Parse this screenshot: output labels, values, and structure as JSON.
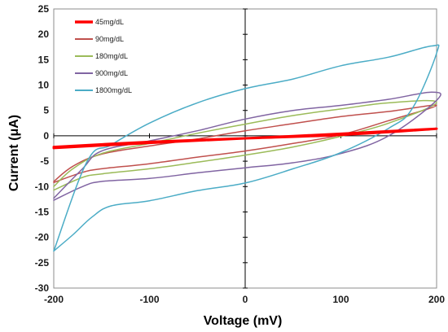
{
  "chart_data": {
    "type": "line",
    "xlabel": "Voltage (mV)",
    "ylabel": "Current (μA)",
    "xlim": [
      -200,
      200
    ],
    "ylim": [
      -30,
      25
    ],
    "xticks": [
      -200,
      -100,
      0,
      100,
      200
    ],
    "yticks": [
      -30,
      -25,
      -20,
      -15,
      -10,
      -5,
      0,
      5,
      10,
      15,
      20,
      25
    ],
    "grid": false,
    "legend_position": "top-left",
    "series": [
      {
        "name": "45mg/dL",
        "color": "#ff0000",
        "stroke_width": 3,
        "x": [
          -200,
          -100,
          0,
          100,
          200,
          100,
          0,
          -100,
          -200
        ],
        "y": [
          -2.4,
          -1.4,
          -0.5,
          0.4,
          1.4,
          0.2,
          -0.5,
          -1.2,
          -2.2
        ]
      },
      {
        "name": "90mg/dL",
        "color": "#c0504d",
        "stroke_width": 1.5,
        "x": [
          -200,
          -170,
          -150,
          -100,
          -50,
          0,
          50,
          100,
          150,
          200,
          150,
          100,
          50,
          0,
          -50,
          -100,
          -150,
          -180,
          -200
        ],
        "y": [
          -9.2,
          -7.2,
          -6.5,
          -5.5,
          -4.2,
          -3.0,
          -1.5,
          0.2,
          3.0,
          6.0,
          4.8,
          3.8,
          2.4,
          1.0,
          -0.6,
          -2.0,
          -3.6,
          -6.0,
          -9.0
        ]
      },
      {
        "name": "180mg/dL",
        "color": "#9bbb59",
        "stroke_width": 1.5,
        "x": [
          -200,
          -170,
          -150,
          -100,
          -50,
          0,
          50,
          100,
          150,
          200,
          150,
          100,
          50,
          0,
          -50,
          -100,
          -150,
          -180,
          -200
        ],
        "y": [
          -10.7,
          -8.2,
          -7.5,
          -6.5,
          -5.2,
          -3.8,
          -2.2,
          -0.1,
          2.5,
          6.6,
          6.5,
          5.3,
          4.0,
          2.3,
          0.5,
          -1.5,
          -3.5,
          -6.5,
          -10.0
        ]
      },
      {
        "name": "900mg/dL",
        "color": "#8064a2",
        "stroke_width": 1.5,
        "x": [
          -200,
          -170,
          -150,
          -100,
          -50,
          0,
          50,
          100,
          150,
          200,
          195,
          150,
          100,
          50,
          0,
          -50,
          -100,
          -150,
          -170,
          -200
        ],
        "y": [
          -12.7,
          -10.0,
          -9.0,
          -8.4,
          -7.3,
          -6.3,
          -5.3,
          -3.5,
          0.0,
          7.0,
          8.6,
          7.2,
          6.0,
          5.0,
          3.3,
          1.0,
          -1.0,
          -3.0,
          -6.5,
          -12.3
        ]
      },
      {
        "name": "1800mg/dL",
        "color": "#4bacc6",
        "stroke_width": 1.5,
        "x": [
          -200,
          -180,
          -160,
          -140,
          -100,
          -50,
          0,
          50,
          100,
          150,
          175,
          200,
          195,
          150,
          100,
          50,
          0,
          -50,
          -100,
          -140,
          -165,
          -200
        ],
        "y": [
          -22.7,
          -19.5,
          -16.0,
          -13.8,
          -12.8,
          -10.8,
          -9.3,
          -6.5,
          -3.3,
          1.5,
          5.5,
          16.3,
          17.7,
          15.5,
          13.8,
          11.2,
          9.3,
          6.5,
          2.5,
          -1.8,
          -5.0,
          -22.7
        ]
      }
    ]
  }
}
